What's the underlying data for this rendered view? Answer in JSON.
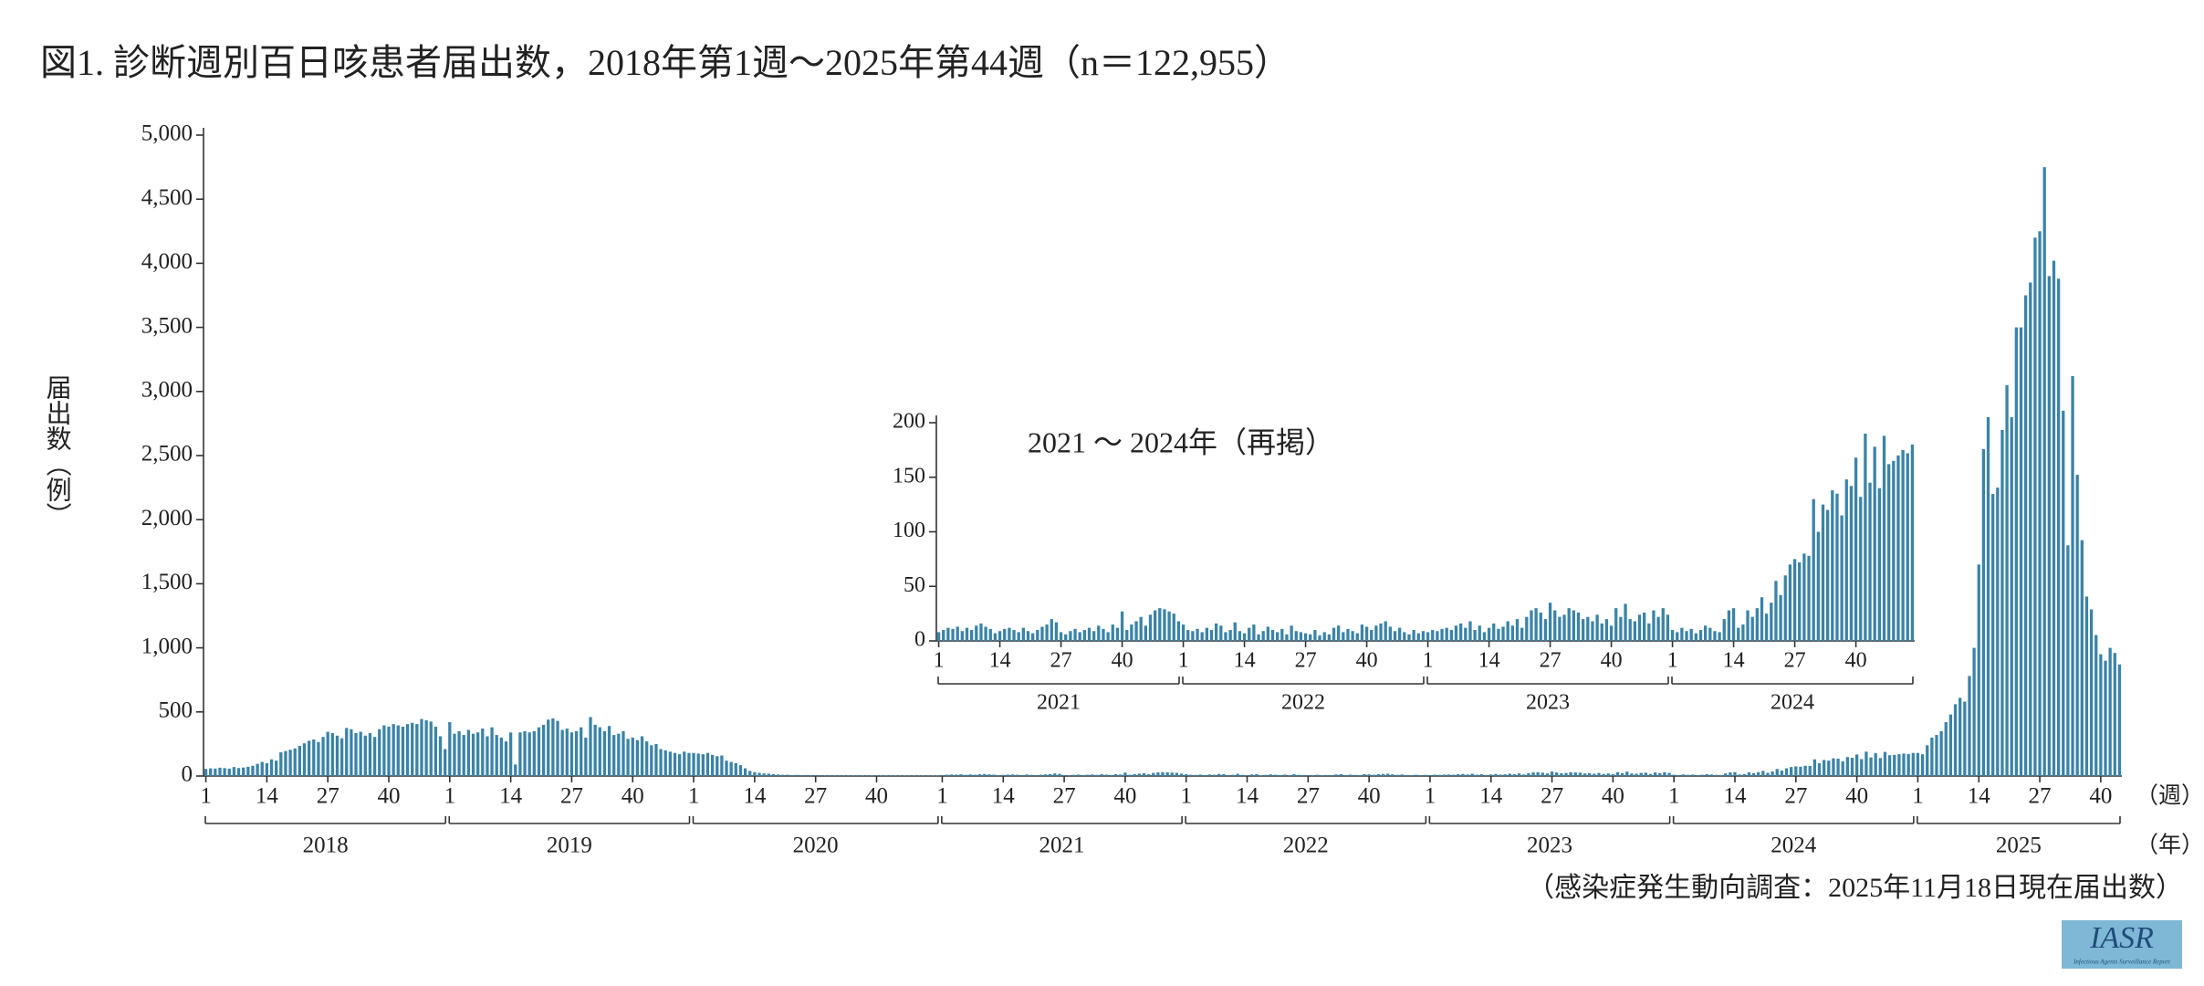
{
  "y_axis_label": "届出数（例）",
  "x_unit_week": "（週）",
  "x_unit_year": "（年）",
  "source": "（感染症発生動向調査：2025年11月18日現在届出数）",
  "logo": {
    "name": "IASR",
    "subtitle": "Infectious Agents Surveillance Report"
  },
  "chart_data": [
    {
      "type": "bar",
      "title": "図1. 診断週別百日咳患者届出数，2018年第1週～2025年第44週（n＝122,955）",
      "color": "#3a83a8",
      "ylim": [
        0,
        5000
      ],
      "yticks": [
        0,
        500,
        {
          "value": 1000,
          "label": "1,000"
        },
        {
          "value": 1500,
          "label": "1,500"
        },
        {
          "value": 2000,
          "label": "2,000"
        },
        {
          "value": 2500,
          "label": "2,500"
        },
        {
          "value": 3000,
          "label": "3,000"
        },
        {
          "value": 3500,
          "label": "3,500"
        },
        {
          "value": 4000,
          "label": "4,000"
        },
        {
          "value": 4500,
          "label": "4,500"
        },
        {
          "value": 5000,
          "label": "5,000"
        }
      ],
      "xticks": [
        1,
        14,
        27,
        40
      ],
      "years": [
        {
          "label": "2018",
          "values": [
            55,
            60,
            58,
            65,
            62,
            58,
            70,
            62,
            66,
            72,
            80,
            95,
            110,
            100,
            130,
            120,
            185,
            195,
            205,
            215,
            235,
            255,
            275,
            285,
            265,
            305,
            345,
            335,
            315,
            295,
            375,
            365,
            335,
            345,
            315,
            335,
            305,
            365,
            395,
            385,
            405,
            395,
            385,
            405,
            415,
            405,
            445,
            435,
            425,
            385,
            310,
            210
          ]
        },
        {
          "label": "2019",
          "values": [
            420,
            330,
            350,
            320,
            360,
            330,
            340,
            370,
            310,
            380,
            320,
            300,
            270,
            340,
            90,
            340,
            350,
            340,
            350,
            380,
            400,
            440,
            450,
            430,
            360,
            370,
            340,
            350,
            380,
            300,
            460,
            400,
            380,
            350,
            390,
            320,
            330,
            350,
            290,
            300,
            280,
            310,
            270,
            240,
            250,
            210,
            200,
            190,
            180,
            170,
            190,
            180
          ]
        },
        {
          "label": "2020",
          "values": [
            180,
            175,
            170,
            180,
            165,
            155,
            160,
            120,
            110,
            100,
            85,
            60,
            40,
            30,
            25,
            20,
            18,
            15,
            12,
            10,
            10,
            8,
            9,
            7,
            8,
            6,
            7,
            6,
            5,
            6,
            5,
            6,
            5,
            5,
            4,
            5,
            4,
            5,
            4,
            5,
            4,
            4,
            5,
            4,
            3,
            4,
            3,
            4,
            5,
            4,
            3,
            4,
            3
          ]
        },
        {
          "label": "2021",
          "values": [
            8,
            10,
            12,
            11,
            13,
            9,
            12,
            10,
            14,
            16,
            13,
            11,
            7,
            9,
            11,
            12,
            10,
            8,
            12,
            9,
            7,
            10,
            13,
            15,
            20,
            17,
            8,
            6,
            9,
            11,
            8,
            10,
            12,
            9,
            14,
            11,
            8,
            15,
            12,
            27,
            10,
            15,
            18,
            22,
            14,
            24,
            28,
            30,
            29,
            27,
            25,
            18
          ]
        },
        {
          "label": "2022",
          "values": [
            15,
            10,
            9,
            11,
            8,
            12,
            10,
            16,
            14,
            8,
            10,
            17,
            9,
            7,
            12,
            15,
            6,
            9,
            13,
            10,
            8,
            11,
            6,
            14,
            9,
            8,
            7,
            6,
            10,
            5,
            8,
            6,
            12,
            14,
            8,
            11,
            9,
            7,
            15,
            13,
            10,
            14,
            16,
            18,
            13,
            9,
            12,
            8,
            6,
            10,
            7,
            9
          ]
        },
        {
          "label": "2023",
          "values": [
            8,
            10,
            9,
            11,
            12,
            10,
            14,
            16,
            12,
            18,
            10,
            14,
            8,
            12,
            16,
            11,
            13,
            18,
            14,
            20,
            12,
            22,
            28,
            30,
            26,
            20,
            35,
            28,
            22,
            24,
            30,
            28,
            26,
            20,
            22,
            18,
            24,
            16,
            20,
            14,
            30,
            22,
            34,
            20,
            18,
            24,
            26,
            16,
            28,
            22,
            30,
            24
          ]
        },
        {
          "label": "2024",
          "values": [
            10,
            8,
            12,
            9,
            11,
            7,
            10,
            14,
            12,
            9,
            8,
            20,
            28,
            30,
            12,
            15,
            28,
            22,
            30,
            40,
            25,
            35,
            55,
            42,
            60,
            70,
            75,
            72,
            80,
            78,
            130,
            100,
            125,
            120,
            138,
            135,
            115,
            148,
            142,
            168,
            132,
            190,
            145,
            178,
            140,
            188,
            162,
            165,
            170,
            175,
            172,
            180
          ]
        },
        {
          "label": "2025",
          "values": [
            180,
            170,
            240,
            300,
            320,
            350,
            420,
            480,
            560,
            610,
            580,
            780,
            1000,
            1650,
            2550,
            2800,
            2200,
            2250,
            2700,
            3050,
            2800,
            3500,
            3500,
            3750,
            3850,
            4200,
            4250,
            4750,
            3900,
            4020,
            3880,
            2850,
            1800,
            3120,
            2350,
            1840,
            1400,
            1300,
            1100,
            950,
            900,
            1000,
            960,
            870
          ]
        }
      ]
    },
    {
      "type": "bar",
      "title": "2021 ～ 2024年（再掲）",
      "color": "#3a83a8",
      "ylim": [
        0,
        200
      ],
      "yticks": [
        0,
        50,
        100,
        150,
        200
      ],
      "xticks": [
        1,
        14,
        27,
        40
      ],
      "years": [
        {
          "label": "2021",
          "values": [
            8,
            10,
            12,
            11,
            13,
            9,
            12,
            10,
            14,
            16,
            13,
            11,
            7,
            9,
            11,
            12,
            10,
            8,
            12,
            9,
            7,
            10,
            13,
            15,
            20,
            17,
            8,
            6,
            9,
            11,
            8,
            10,
            12,
            9,
            14,
            11,
            8,
            15,
            12,
            27,
            10,
            15,
            18,
            22,
            14,
            24,
            28,
            30,
            29,
            27,
            25,
            18
          ]
        },
        {
          "label": "2022",
          "values": [
            15,
            10,
            9,
            11,
            8,
            12,
            10,
            16,
            14,
            8,
            10,
            17,
            9,
            7,
            12,
            15,
            6,
            9,
            13,
            10,
            8,
            11,
            6,
            14,
            9,
            8,
            7,
            6,
            10,
            5,
            8,
            6,
            12,
            14,
            8,
            11,
            9,
            7,
            15,
            13,
            10,
            14,
            16,
            18,
            13,
            9,
            12,
            8,
            6,
            10,
            7,
            9
          ]
        },
        {
          "label": "2023",
          "values": [
            8,
            10,
            9,
            11,
            12,
            10,
            14,
            16,
            12,
            18,
            10,
            14,
            8,
            12,
            16,
            11,
            13,
            18,
            14,
            20,
            12,
            22,
            28,
            30,
            26,
            20,
            35,
            28,
            22,
            24,
            30,
            28,
            26,
            20,
            22,
            18,
            24,
            16,
            20,
            14,
            30,
            22,
            34,
            20,
            18,
            24,
            26,
            16,
            28,
            22,
            30,
            24
          ]
        },
        {
          "label": "2024",
          "values": [
            10,
            8,
            12,
            9,
            11,
            7,
            10,
            14,
            12,
            9,
            8,
            20,
            28,
            30,
            12,
            15,
            28,
            22,
            30,
            40,
            25,
            35,
            55,
            42,
            60,
            70,
            75,
            72,
            80,
            78,
            130,
            100,
            125,
            120,
            138,
            135,
            115,
            148,
            142,
            168,
            132,
            190,
            145,
            178,
            140,
            188,
            162,
            165,
            170,
            175,
            172,
            180
          ]
        }
      ]
    }
  ]
}
